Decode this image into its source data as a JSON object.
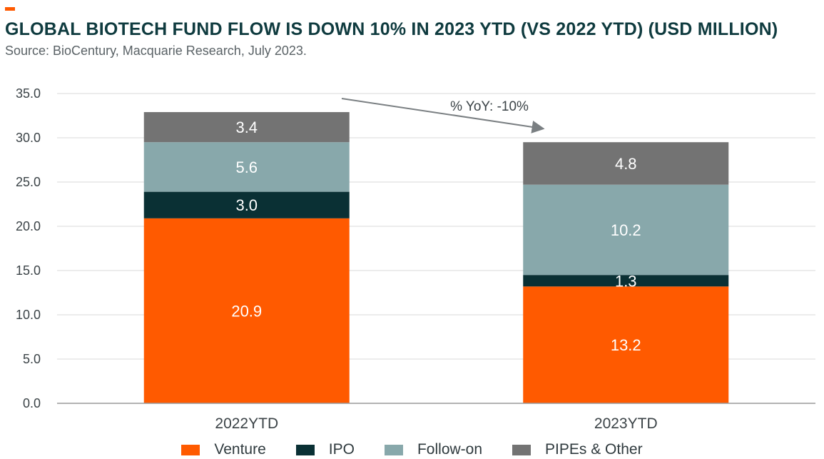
{
  "header": {
    "title": "GLOBAL BIOTECH FUND FLOW IS DOWN 10% IN 2023 YTD (VS 2022 YTD) (USD MILLION)",
    "source": "Source: BioCentury, Macquarie Research, July 2023."
  },
  "chart_data": {
    "type": "bar",
    "stacked": true,
    "categories": [
      "2022YTD",
      "2023YTD"
    ],
    "series": [
      {
        "name": "Venture",
        "values": [
          20.9,
          13.2
        ],
        "labels": [
          "20.9",
          "13.2"
        ],
        "color": "#ff5a00",
        "label_color": "#ffffff"
      },
      {
        "name": "IPO",
        "values": [
          3.0,
          1.3
        ],
        "labels": [
          "3.0",
          "1.3"
        ],
        "color": "#0a3034",
        "label_color": "#ffffff"
      },
      {
        "name": "Follow-on",
        "values": [
          5.6,
          10.2
        ],
        "labels": [
          "5.6",
          "10.2"
        ],
        "color": "#88a8ab",
        "label_color": "#ffffff"
      },
      {
        "name": "PIPEs & Other",
        "values": [
          3.4,
          4.8
        ],
        "labels": [
          "3.4",
          "4.8"
        ],
        "color": "#737373",
        "label_color": "#ffffff"
      }
    ],
    "ylim": [
      0,
      35
    ],
    "yticks": [
      "0.0",
      "5.0",
      "10.0",
      "15.0",
      "20.0",
      "25.0",
      "30.0",
      "35.0"
    ],
    "grid": true,
    "legend_position": "bottom",
    "annotation": "% YoY: -10%"
  }
}
